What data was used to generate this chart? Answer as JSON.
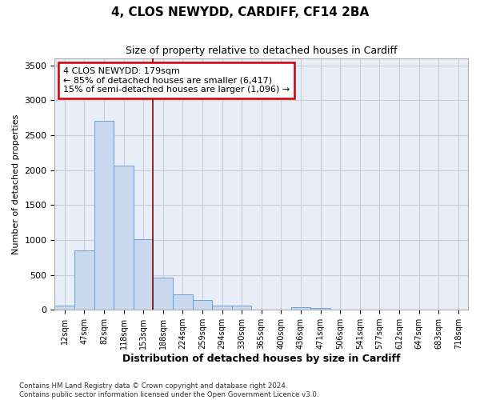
{
  "title_line1": "4, CLOS NEWYDD, CARDIFF, CF14 2BA",
  "title_line2": "Size of property relative to detached houses in Cardiff",
  "xlabel": "Distribution of detached houses by size in Cardiff",
  "ylabel": "Number of detached properties",
  "categories": [
    "12sqm",
    "47sqm",
    "82sqm",
    "118sqm",
    "153sqm",
    "188sqm",
    "224sqm",
    "259sqm",
    "294sqm",
    "330sqm",
    "365sqm",
    "400sqm",
    "436sqm",
    "471sqm",
    "506sqm",
    "541sqm",
    "577sqm",
    "612sqm",
    "647sqm",
    "683sqm",
    "718sqm"
  ],
  "values": [
    55,
    850,
    2710,
    2060,
    1010,
    460,
    215,
    145,
    60,
    55,
    0,
    0,
    35,
    30,
    0,
    0,
    0,
    0,
    0,
    0,
    0
  ],
  "bar_color": "#c8d9ef",
  "bar_edge_color": "#6a9fd8",
  "annotation_text_line1": "4 CLOS NEWYDD: 179sqm",
  "annotation_text_line2": "← 85% of detached houses are smaller (6,417)",
  "annotation_text_line3": "15% of semi-detached houses are larger (1,096) →",
  "vline_color": "#8b0000",
  "box_edge_color": "#cc0000",
  "ylim": [
    0,
    3600
  ],
  "yticks": [
    0,
    500,
    1000,
    1500,
    2000,
    2500,
    3000,
    3500
  ],
  "grid_color": "#c8cdd8",
  "bg_color": "#e8eef8",
  "footnote1": "Contains HM Land Registry data © Crown copyright and database right 2024.",
  "footnote2": "Contains public sector information licensed under the Open Government Licence v3.0."
}
